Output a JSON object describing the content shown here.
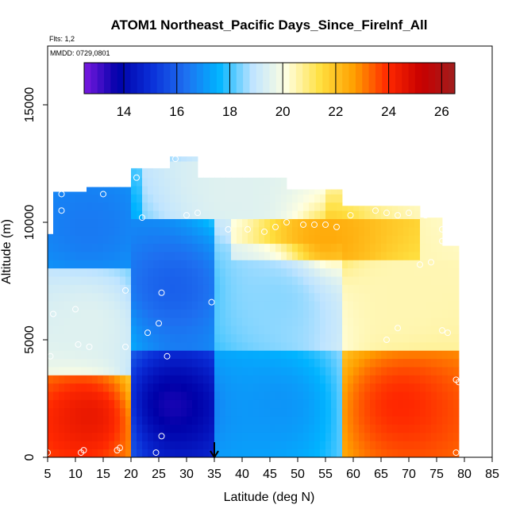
{
  "chart_data": {
    "type": "heatmap",
    "title": "ATOM1 Northeast_Pacific Days_Since_FireInf_All",
    "flights_label": "Flts: 1,2",
    "dates_label": "MMDD: 0729,0801",
    "xlabel": "Latitude (deg N)",
    "ylabel": "Altitude (m)",
    "xlim": [
      5,
      85
    ],
    "ylim": [
      0,
      17500
    ],
    "x_ticks": [
      5,
      10,
      15,
      20,
      25,
      30,
      35,
      40,
      45,
      50,
      55,
      60,
      65,
      70,
      75,
      80,
      85
    ],
    "y_ticks": [
      0,
      5000,
      10000,
      15000
    ],
    "colorbar": {
      "range": [
        12.5,
        26.5
      ],
      "ticks": [
        14,
        16,
        18,
        20,
        22,
        24,
        26
      ],
      "colors": [
        "#7a1ae0",
        "#0000a8",
        "#0a2fd8",
        "#1e6ff0",
        "#00b4ff",
        "#bfe4ff",
        "#ffffe0",
        "#ffe040",
        "#ffa000",
        "#ff2800",
        "#c80000",
        "#a01e1e"
      ]
    },
    "marker": {
      "latitude": 35,
      "symbol": "down-arrow"
    },
    "field_regions": [
      {
        "lat_range": [
          5,
          20
        ],
        "alt_range": [
          0,
          3500
        ],
        "value": 24.5
      },
      {
        "lat_range": [
          5,
          20
        ],
        "alt_range": [
          3500,
          8000
        ],
        "value": 19.5
      },
      {
        "lat_range": [
          5,
          20
        ],
        "alt_range": [
          8000,
          11500
        ],
        "value": 16.5
      },
      {
        "lat_range": [
          20,
          35
        ],
        "alt_range": [
          0,
          4500
        ],
        "value": 13.5
      },
      {
        "lat_range": [
          20,
          35
        ],
        "alt_range": [
          4500,
          10000
        ],
        "value": 16
      },
      {
        "lat_range": [
          35,
          58
        ],
        "alt_range": [
          0,
          4500
        ],
        "value": 17
      },
      {
        "lat_range": [
          35,
          58
        ],
        "alt_range": [
          4500,
          9000
        ],
        "value": 18.5
      },
      {
        "lat_range": [
          38,
          72
        ],
        "alt_range": [
          8500,
          10000
        ],
        "value": 22.5
      },
      {
        "lat_range": [
          58,
          79
        ],
        "alt_range": [
          0,
          4500
        ],
        "value": 24
      },
      {
        "lat_range": [
          58,
          79
        ],
        "alt_range": [
          4500,
          8500
        ],
        "value": 20.5
      },
      {
        "lat_range": [
          22,
          55
        ],
        "alt_range": [
          10000,
          12500
        ],
        "value": 19.5
      }
    ],
    "sample_points": [
      [
        5,
        200
      ],
      [
        11,
        200
      ],
      [
        11.5,
        300
      ],
      [
        17.5,
        300
      ],
      [
        18,
        400
      ],
      [
        24.5,
        200
      ],
      [
        25.5,
        900
      ],
      [
        26.5,
        4300
      ],
      [
        25,
        5700
      ],
      [
        23,
        5300
      ],
      [
        25.5,
        7000
      ],
      [
        34.5,
        6600
      ],
      [
        5.5,
        4300
      ],
      [
        6,
        6100
      ],
      [
        10,
        6300
      ],
      [
        10.5,
        4800
      ],
      [
        12.5,
        4700
      ],
      [
        19,
        4700
      ],
      [
        19,
        7100
      ],
      [
        7.5,
        10500
      ],
      [
        7.5,
        11200
      ],
      [
        15,
        11200
      ],
      [
        21,
        11900
      ],
      [
        28,
        12700
      ],
      [
        22,
        10200
      ],
      [
        30,
        10300
      ],
      [
        32,
        10400
      ],
      [
        37.5,
        9700
      ],
      [
        41,
        9700
      ],
      [
        44,
        9600
      ],
      [
        46,
        9800
      ],
      [
        48,
        10000
      ],
      [
        51,
        9900
      ],
      [
        53,
        9900
      ],
      [
        55,
        9900
      ],
      [
        57,
        9800
      ],
      [
        59.5,
        10300
      ],
      [
        64,
        10500
      ],
      [
        66,
        10400
      ],
      [
        68,
        10300
      ],
      [
        70,
        10400
      ],
      [
        73,
        10300
      ],
      [
        76,
        9700
      ],
      [
        76,
        9200
      ],
      [
        72,
        8200
      ],
      [
        74,
        8300
      ],
      [
        68,
        5500
      ],
      [
        66,
        5000
      ],
      [
        76,
        5400
      ],
      [
        77,
        5300
      ],
      [
        78.5,
        3300
      ],
      [
        79,
        3200
      ],
      [
        78.5,
        200
      ]
    ]
  }
}
